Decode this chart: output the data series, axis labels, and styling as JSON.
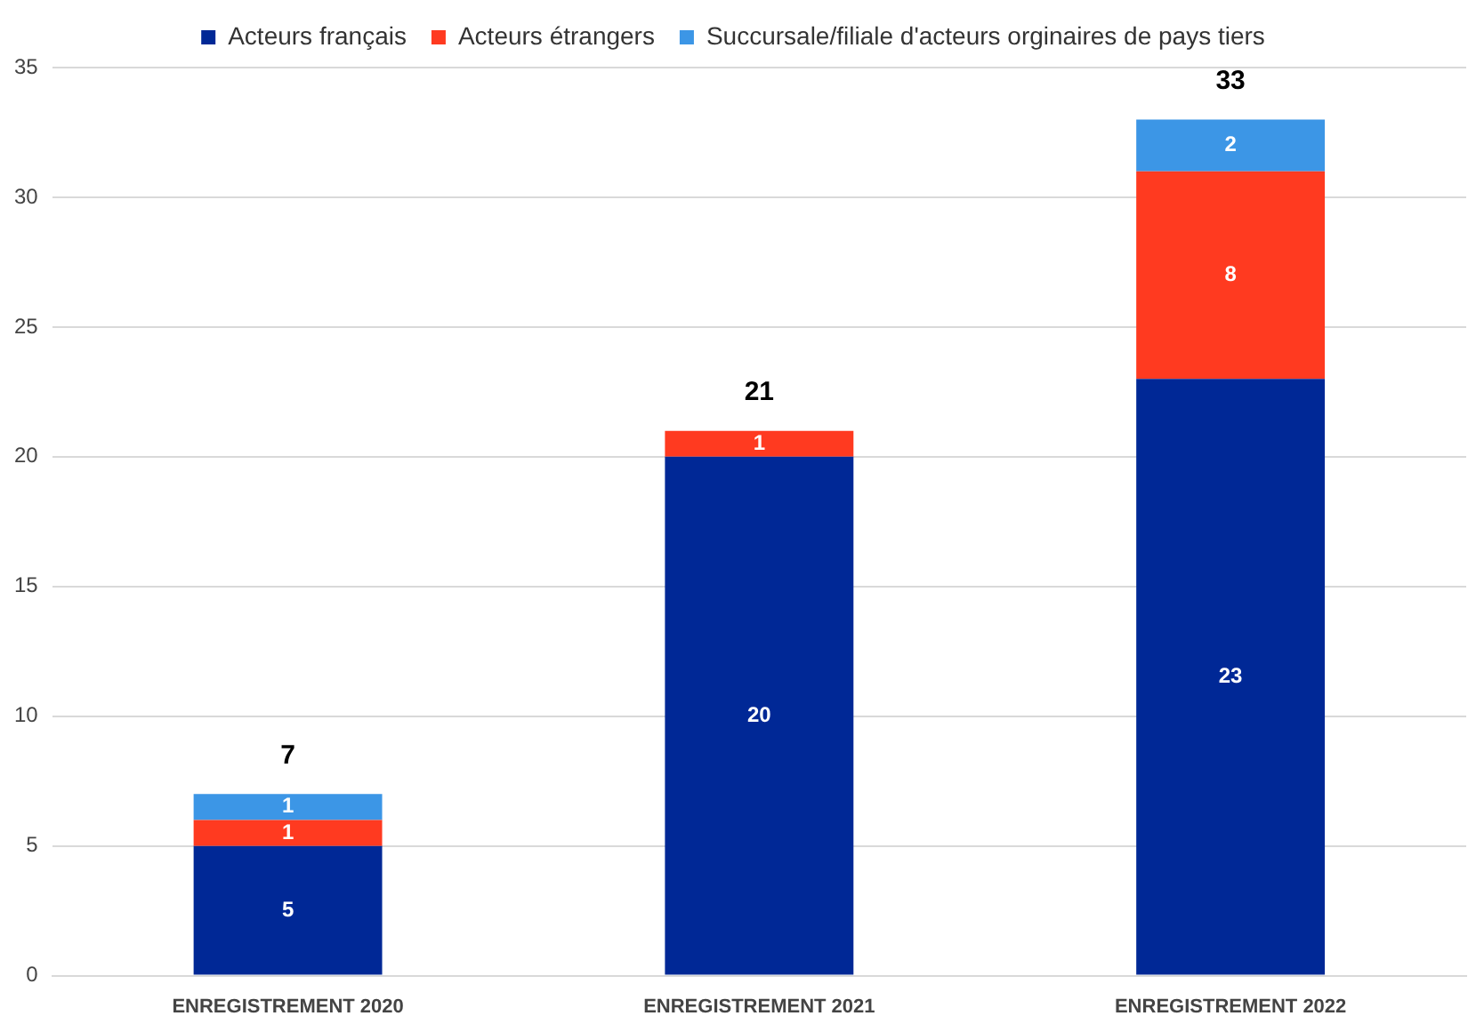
{
  "chart_data": {
    "type": "bar",
    "stacked": true,
    "categories": [
      "ENREGISTREMENT 2020",
      "ENREGISTREMENT 2021",
      "ENREGISTREMENT 2022"
    ],
    "series": [
      {
        "name": "Acteurs français",
        "color": "#002896",
        "values": [
          5,
          20,
          23
        ]
      },
      {
        "name": "Acteurs étrangers",
        "color": "#ff3a20",
        "values": [
          1,
          1,
          8
        ]
      },
      {
        "name": "Succursale/filiale d'acteurs orginaires de pays tiers",
        "color": "#3c96e6",
        "values": [
          1,
          null,
          2
        ]
      }
    ],
    "ylim": [
      0,
      35
    ],
    "yticks": [
      0,
      5,
      10,
      15,
      20,
      25,
      30,
      35
    ],
    "grid": "y",
    "legend": "top",
    "data_labels": true,
    "totals": [
      "7",
      "21",
      "33"
    ]
  }
}
